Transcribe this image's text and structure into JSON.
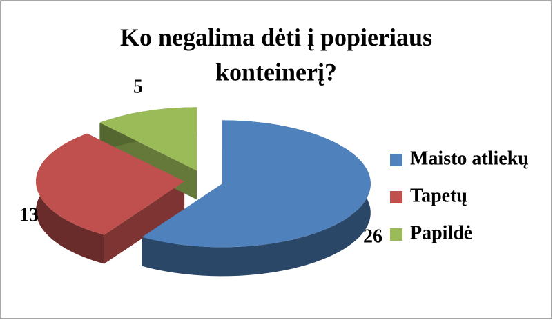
{
  "chart_data": {
    "type": "pie3d",
    "title": "Ko negalima dėti į popieriaus konteinerį?",
    "categories": [
      "Maisto atliekų",
      "Tapetų",
      "Papildė"
    ],
    "values": [
      26,
      13,
      5
    ],
    "colors": [
      "#4f81bd",
      "#c0504d",
      "#9bbb59"
    ],
    "legend": "right"
  }
}
